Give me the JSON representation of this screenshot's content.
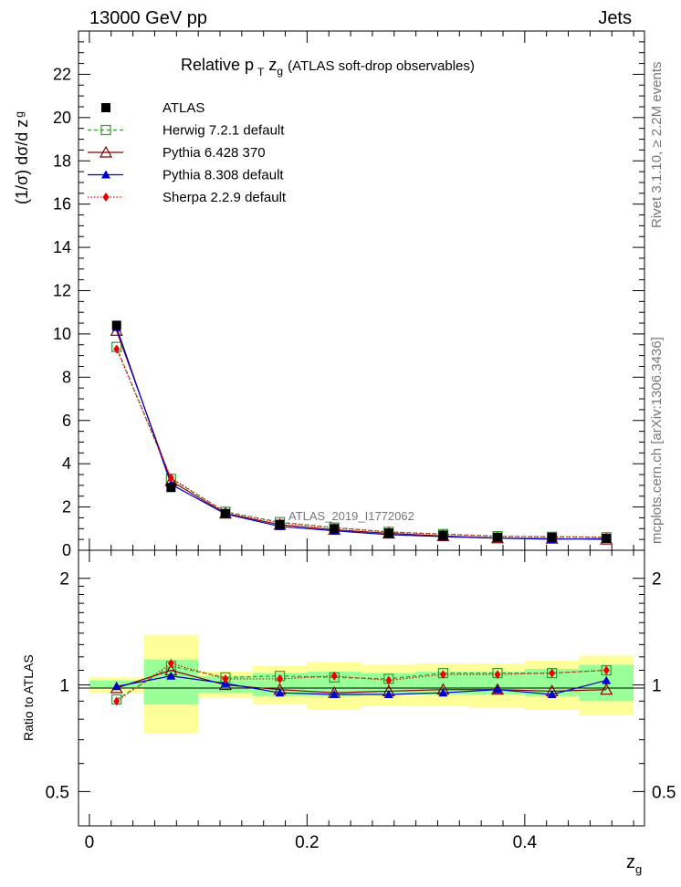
{
  "header": {
    "left": "13000 GeV pp",
    "right": "Jets"
  },
  "side": {
    "rivet": "Rivet 3.1.10, ≥ 2.2M events",
    "mcplots": "mcplots.cern.ch [arXiv:1306.3436]"
  },
  "chart_data": [
    {
      "type": "scatter",
      "title_main": "Relative p",
      "title_sub_T": "T",
      "title_z": "z",
      "title_sub_g": "g",
      "title_rest": "(ATLAS soft-drop observables)",
      "ylabel_main": "(1/σ) dσ/d z",
      "ylabel_sub": "g",
      "watermark": "ATLAS_2019_I1772062",
      "ylim": [
        0,
        24
      ],
      "xlim": [
        -0.01,
        0.51
      ],
      "yticks": [
        0,
        2,
        4,
        6,
        8,
        10,
        12,
        14,
        16,
        18,
        20,
        22
      ],
      "ytick_labels": [
        "0",
        "2",
        "4",
        "6",
        "8",
        "10",
        "12",
        "14",
        "16",
        "18",
        "20",
        "22"
      ],
      "x": [
        0.025,
        0.075,
        0.125,
        0.175,
        0.225,
        0.275,
        0.325,
        0.375,
        0.425,
        0.475
      ],
      "legend_position": "top-left",
      "series": [
        {
          "name": "ATLAS",
          "values": [
            10.4,
            2.9,
            1.7,
            1.2,
            1.0,
            0.8,
            0.7,
            0.6,
            0.6,
            0.55
          ],
          "color": "#000000",
          "marker": "square-filled",
          "line": "none"
        },
        {
          "name": "Herwig 7.2.1 default",
          "values": [
            9.4,
            3.3,
            1.78,
            1.3,
            1.05,
            0.85,
            0.75,
            0.65,
            0.62,
            0.6
          ],
          "color": "#339933",
          "marker": "square-open",
          "line": "dashed"
        },
        {
          "name": "Pythia 6.428 370",
          "values": [
            10.15,
            3.2,
            1.7,
            1.18,
            0.95,
            0.78,
            0.66,
            0.56,
            0.54,
            0.5
          ],
          "color": "#800000",
          "marker": "triangle-open",
          "line": "solid"
        },
        {
          "name": "Pythia 8.308 default",
          "values": [
            10.3,
            3.05,
            1.68,
            1.1,
            0.9,
            0.72,
            0.63,
            0.56,
            0.51,
            0.54
          ],
          "color": "#0000cc",
          "marker": "triangle-filled",
          "line": "solid"
        },
        {
          "name": "Sherpa 2.2.9 default",
          "values": [
            9.3,
            3.35,
            1.75,
            1.27,
            1.04,
            0.84,
            0.74,
            0.64,
            0.63,
            0.61
          ],
          "color": "#ee0000",
          "marker": "diamond-filled",
          "line": "dotted"
        }
      ]
    },
    {
      "type": "scatter",
      "ylabel": "Ratio to ATLAS",
      "xlabel_main": "z",
      "xlabel_sub": "g",
      "ylim": [
        0.4,
        2.4
      ],
      "xlim": [
        -0.01,
        0.51
      ],
      "yticks": [
        0.5,
        1,
        2
      ],
      "ytick_labels": [
        "0.5",
        "1",
        "2"
      ],
      "xticks": [
        0,
        0.2,
        0.4
      ],
      "xtick_labels": [
        "0",
        "0.2",
        "0.4"
      ],
      "x": [
        0.025,
        0.075,
        0.125,
        0.175,
        0.225,
        0.275,
        0.325,
        0.375,
        0.425,
        0.475
      ],
      "bands": {
        "x_edges": [
          0,
          0.05,
          0.1,
          0.15,
          0.2,
          0.25,
          0.3,
          0.35,
          0.4,
          0.45,
          0.5
        ],
        "yellow": [
          [
            0.95,
            1.05
          ],
          [
            0.73,
            1.38
          ],
          [
            0.92,
            1.09
          ],
          [
            0.88,
            1.13
          ],
          [
            0.85,
            1.16
          ],
          [
            0.87,
            1.14
          ],
          [
            0.87,
            1.15
          ],
          [
            0.86,
            1.15
          ],
          [
            0.85,
            1.17
          ],
          [
            0.82,
            1.21
          ]
        ],
        "green": [
          [
            0.98,
            1.03
          ],
          [
            0.88,
            1.18
          ],
          [
            0.95,
            1.06
          ],
          [
            0.93,
            1.08
          ],
          [
            0.93,
            1.09
          ],
          [
            0.94,
            1.08
          ],
          [
            0.94,
            1.09
          ],
          [
            0.94,
            1.09
          ],
          [
            0.93,
            1.11
          ],
          [
            0.9,
            1.14
          ]
        ],
        "yellow_color": "#ffff99",
        "green_color": "#99ff99"
      },
      "series": [
        {
          "name": "Herwig 7.2.1 default",
          "values": [
            0.91,
            1.13,
            1.05,
            1.06,
            1.05,
            1.04,
            1.08,
            1.08,
            1.08,
            1.1
          ],
          "color": "#339933",
          "marker": "square-open",
          "line": "dashed"
        },
        {
          "name": "Pythia 6.428 370",
          "values": [
            0.98,
            1.1,
            1.0,
            0.97,
            0.95,
            0.96,
            0.97,
            0.97,
            0.96,
            0.97
          ],
          "color": "#800000",
          "marker": "triangle-open",
          "line": "solid"
        },
        {
          "name": "Pythia 8.308 default",
          "values": [
            0.99,
            1.06,
            1.01,
            0.95,
            0.94,
            0.94,
            0.95,
            0.97,
            0.94,
            1.03
          ],
          "color": "#0000cc",
          "marker": "triangle-filled",
          "line": "solid"
        },
        {
          "name": "Sherpa 2.2.9 default",
          "values": [
            0.9,
            1.15,
            1.04,
            1.04,
            1.06,
            1.03,
            1.07,
            1.07,
            1.08,
            1.1
          ],
          "color": "#ee0000",
          "marker": "diamond-filled",
          "line": "dotted"
        }
      ]
    }
  ]
}
